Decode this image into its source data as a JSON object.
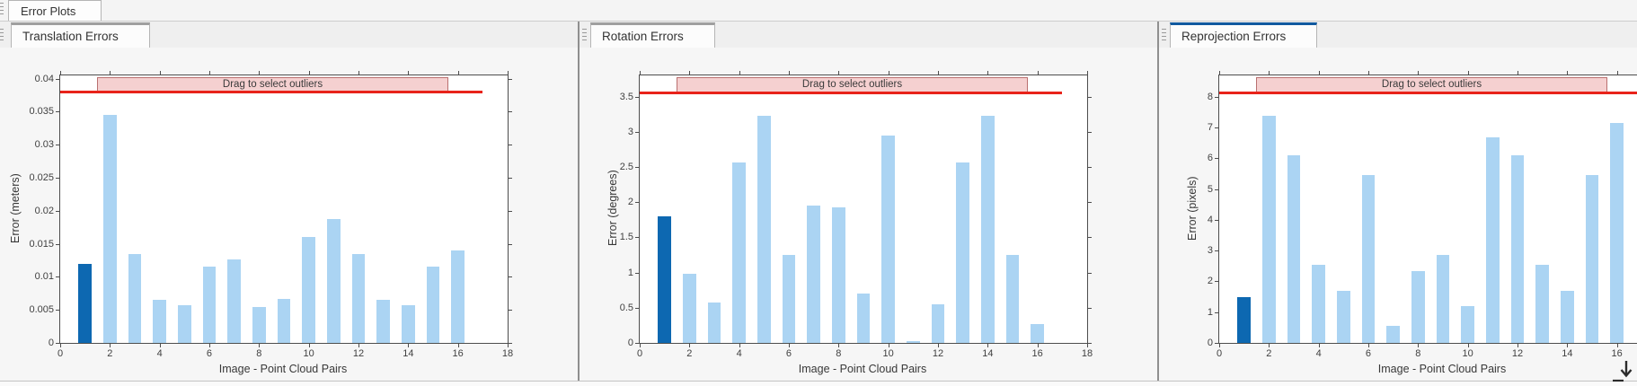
{
  "window_tab": {
    "label": "Error Plots"
  },
  "colors": {
    "bar_selected": "#0d68b1",
    "bar_normal": "#abd4f3",
    "red_line": "#e8231a",
    "band_fill": "#f5d0d0",
    "band_border": "#b97070",
    "tab_accent_active": "#10599f",
    "tab_accent_inactive": "#9f9f9f"
  },
  "chart_data": [
    {
      "type": "bar",
      "tab": "Translation Errors",
      "ylabel": "Error (meters)",
      "xlabel": "Image - Point Cloud Pairs",
      "band_label": "Drag to select outliers",
      "x": [
        1,
        2,
        3,
        4,
        5,
        6,
        7,
        8,
        9,
        10,
        11,
        12,
        13,
        14,
        15,
        16
      ],
      "values": [
        0.012,
        0.0345,
        0.0135,
        0.0065,
        0.0057,
        0.0115,
        0.0126,
        0.0055,
        0.0067,
        0.016,
        0.0188,
        0.0135,
        0.0065,
        0.0057,
        0.0115,
        0.014
      ],
      "selected_index": 0,
      "xlim": [
        0,
        18
      ],
      "ylim": [
        0,
        0.0405
      ],
      "xticks": [
        0,
        2,
        4,
        6,
        8,
        10,
        12,
        14,
        16,
        18
      ],
      "yticks": [
        0,
        0.005,
        0.01,
        0.015,
        0.02,
        0.025,
        0.03,
        0.035,
        0.04
      ],
      "outlier_threshold": 0.038,
      "threshold_line_x": [
        0,
        17
      ],
      "band_x": [
        1.5,
        15.6
      ],
      "active": false
    },
    {
      "type": "bar",
      "tab": "Rotation Errors",
      "ylabel": "Error (degrees)",
      "xlabel": "Image - Point Cloud Pairs",
      "band_label": "Drag to select outliers",
      "x": [
        1,
        2,
        3,
        4,
        5,
        6,
        7,
        8,
        9,
        10,
        11,
        12,
        13,
        14,
        15,
        16
      ],
      "values": [
        1.8,
        0.98,
        0.57,
        2.56,
        3.22,
        1.25,
        1.95,
        1.92,
        0.7,
        2.95,
        0.02,
        0.55,
        2.56,
        3.22,
        1.25,
        0.27
      ],
      "selected_index": 0,
      "xlim": [
        0,
        18
      ],
      "ylim": [
        0,
        3.8
      ],
      "xticks": [
        0,
        2,
        4,
        6,
        8,
        10,
        12,
        14,
        16,
        18
      ],
      "yticks": [
        0,
        0.5,
        1,
        1.5,
        2,
        2.5,
        3,
        3.5
      ],
      "outlier_threshold": 3.56,
      "threshold_line_x": [
        0,
        17
      ],
      "band_x": [
        1.5,
        15.6
      ],
      "active": false
    },
    {
      "type": "bar",
      "tab": "Reprojection Errors",
      "ylabel": "Error (pixels)",
      "xlabel": "Image - Point Cloud Pairs",
      "band_label": "Drag to select outliers",
      "x": [
        1,
        2,
        3,
        4,
        5,
        6,
        7,
        8,
        9,
        10,
        11,
        12,
        13,
        14,
        15,
        16
      ],
      "values": [
        1.5,
        7.4,
        6.1,
        2.55,
        1.7,
        5.45,
        0.55,
        2.35,
        2.85,
        1.2,
        6.7,
        6.1,
        2.55,
        1.7,
        5.45,
        7.15
      ],
      "selected_index": 0,
      "xlim": [
        0,
        18
      ],
      "ylim": [
        0,
        8.7
      ],
      "xticks": [
        0,
        2,
        4,
        6,
        8,
        10,
        12,
        14,
        16,
        18
      ],
      "yticks": [
        0,
        1,
        2,
        3,
        4,
        5,
        6,
        7,
        8
      ],
      "outlier_threshold": 8.15,
      "threshold_line_x": [
        0,
        17
      ],
      "band_x": [
        1.5,
        15.6
      ],
      "active": true
    }
  ]
}
